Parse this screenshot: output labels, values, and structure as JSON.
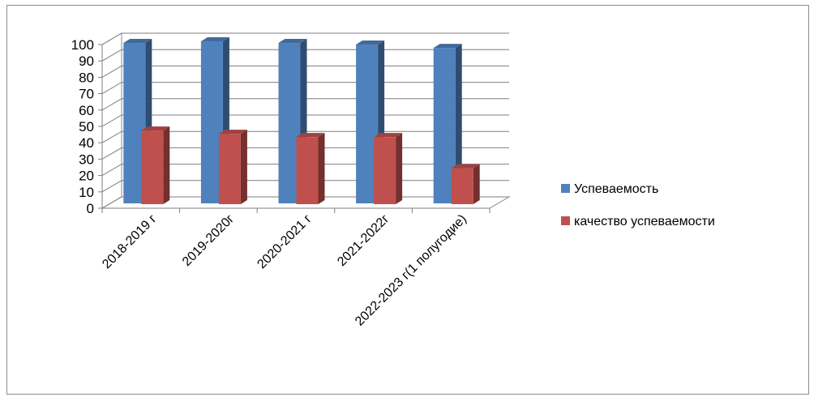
{
  "chart_data": {
    "type": "bar",
    "title": "",
    "xlabel": "",
    "ylabel": "",
    "ylim": [
      0,
      100
    ],
    "yticks": [
      0,
      10,
      20,
      30,
      40,
      50,
      60,
      70,
      80,
      90,
      100
    ],
    "categories": [
      "2018-2019 г",
      "2019-2020г",
      "2020-2021 г",
      "2021-2022г",
      "2022-2023 г(1 полугодие)"
    ],
    "series": [
      {
        "name": "Успеваемость",
        "values": [
          98,
          99,
          98,
          97,
          95
        ],
        "color": "#4F81BD"
      },
      {
        "name": "качество успеваемости",
        "values": [
          45,
          43,
          41,
          41,
          22
        ],
        "color": "#C0504D"
      }
    ],
    "grid": true,
    "legend_position": "right",
    "style": "3d-clustered-column"
  }
}
